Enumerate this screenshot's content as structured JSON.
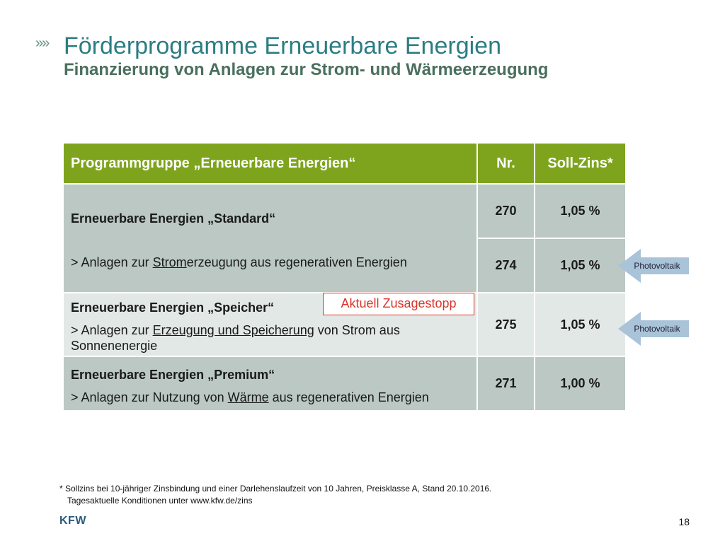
{
  "header": {
    "chevrons": "»»",
    "title": "Förderprogramme Erneuerbare Energien",
    "subtitle": "Finanzierung von Anlagen zur Strom- und Wärmeerzeugung"
  },
  "table": {
    "headers": {
      "program": "Programmgruppe „Erneuerbare Energien“",
      "nr": "Nr.",
      "rate": "Soll-Zins*"
    },
    "standard": {
      "title": "Erneuerbare Energien „Standard“",
      "desc_pre": "> Anlagen zur ",
      "desc_u": "Strom",
      "desc_post": "erzeugung aus regenerativen Energien",
      "rows": [
        {
          "nr": "270",
          "rate": "1,05 %"
        },
        {
          "nr": "274",
          "rate": "1,05 %"
        }
      ]
    },
    "speicher": {
      "title": "Erneuerbare Energien „Speicher“",
      "desc_pre": "> Anlagen zur ",
      "desc_u": "Erzeugung und Speicherung",
      "desc_post": " von Strom aus Sonnenenergie",
      "nr": "275",
      "rate": "1,05 %"
    },
    "premium": {
      "title": "Erneuerbare Energien „Premium“",
      "desc_pre": "> Anlagen zur Nutzung von ",
      "desc_u": "Wärme",
      "desc_post": " aus regenerativen Energien",
      "nr": "271",
      "rate": "1,00 %"
    }
  },
  "notice": "Aktuell Zusagestopp",
  "callouts": [
    "Photovoltaik",
    "Photovoltaik"
  ],
  "footnote": {
    "line1": "* Sollzins bei 10-jähriger Zinsbindung und einer Darlehenslaufzeit von 10 Jahren, Preisklasse A, Stand 20.10.2016.",
    "line2": "Tagesaktuelle Konditionen unter www.kfw.de/zins"
  },
  "logo": "KFW",
  "page_number": "18",
  "colors": {
    "header_green": "#7ea41d",
    "title_teal": "#2b7d83",
    "alert_red": "#d9352a",
    "callout_blue": "#a9c3d9"
  }
}
